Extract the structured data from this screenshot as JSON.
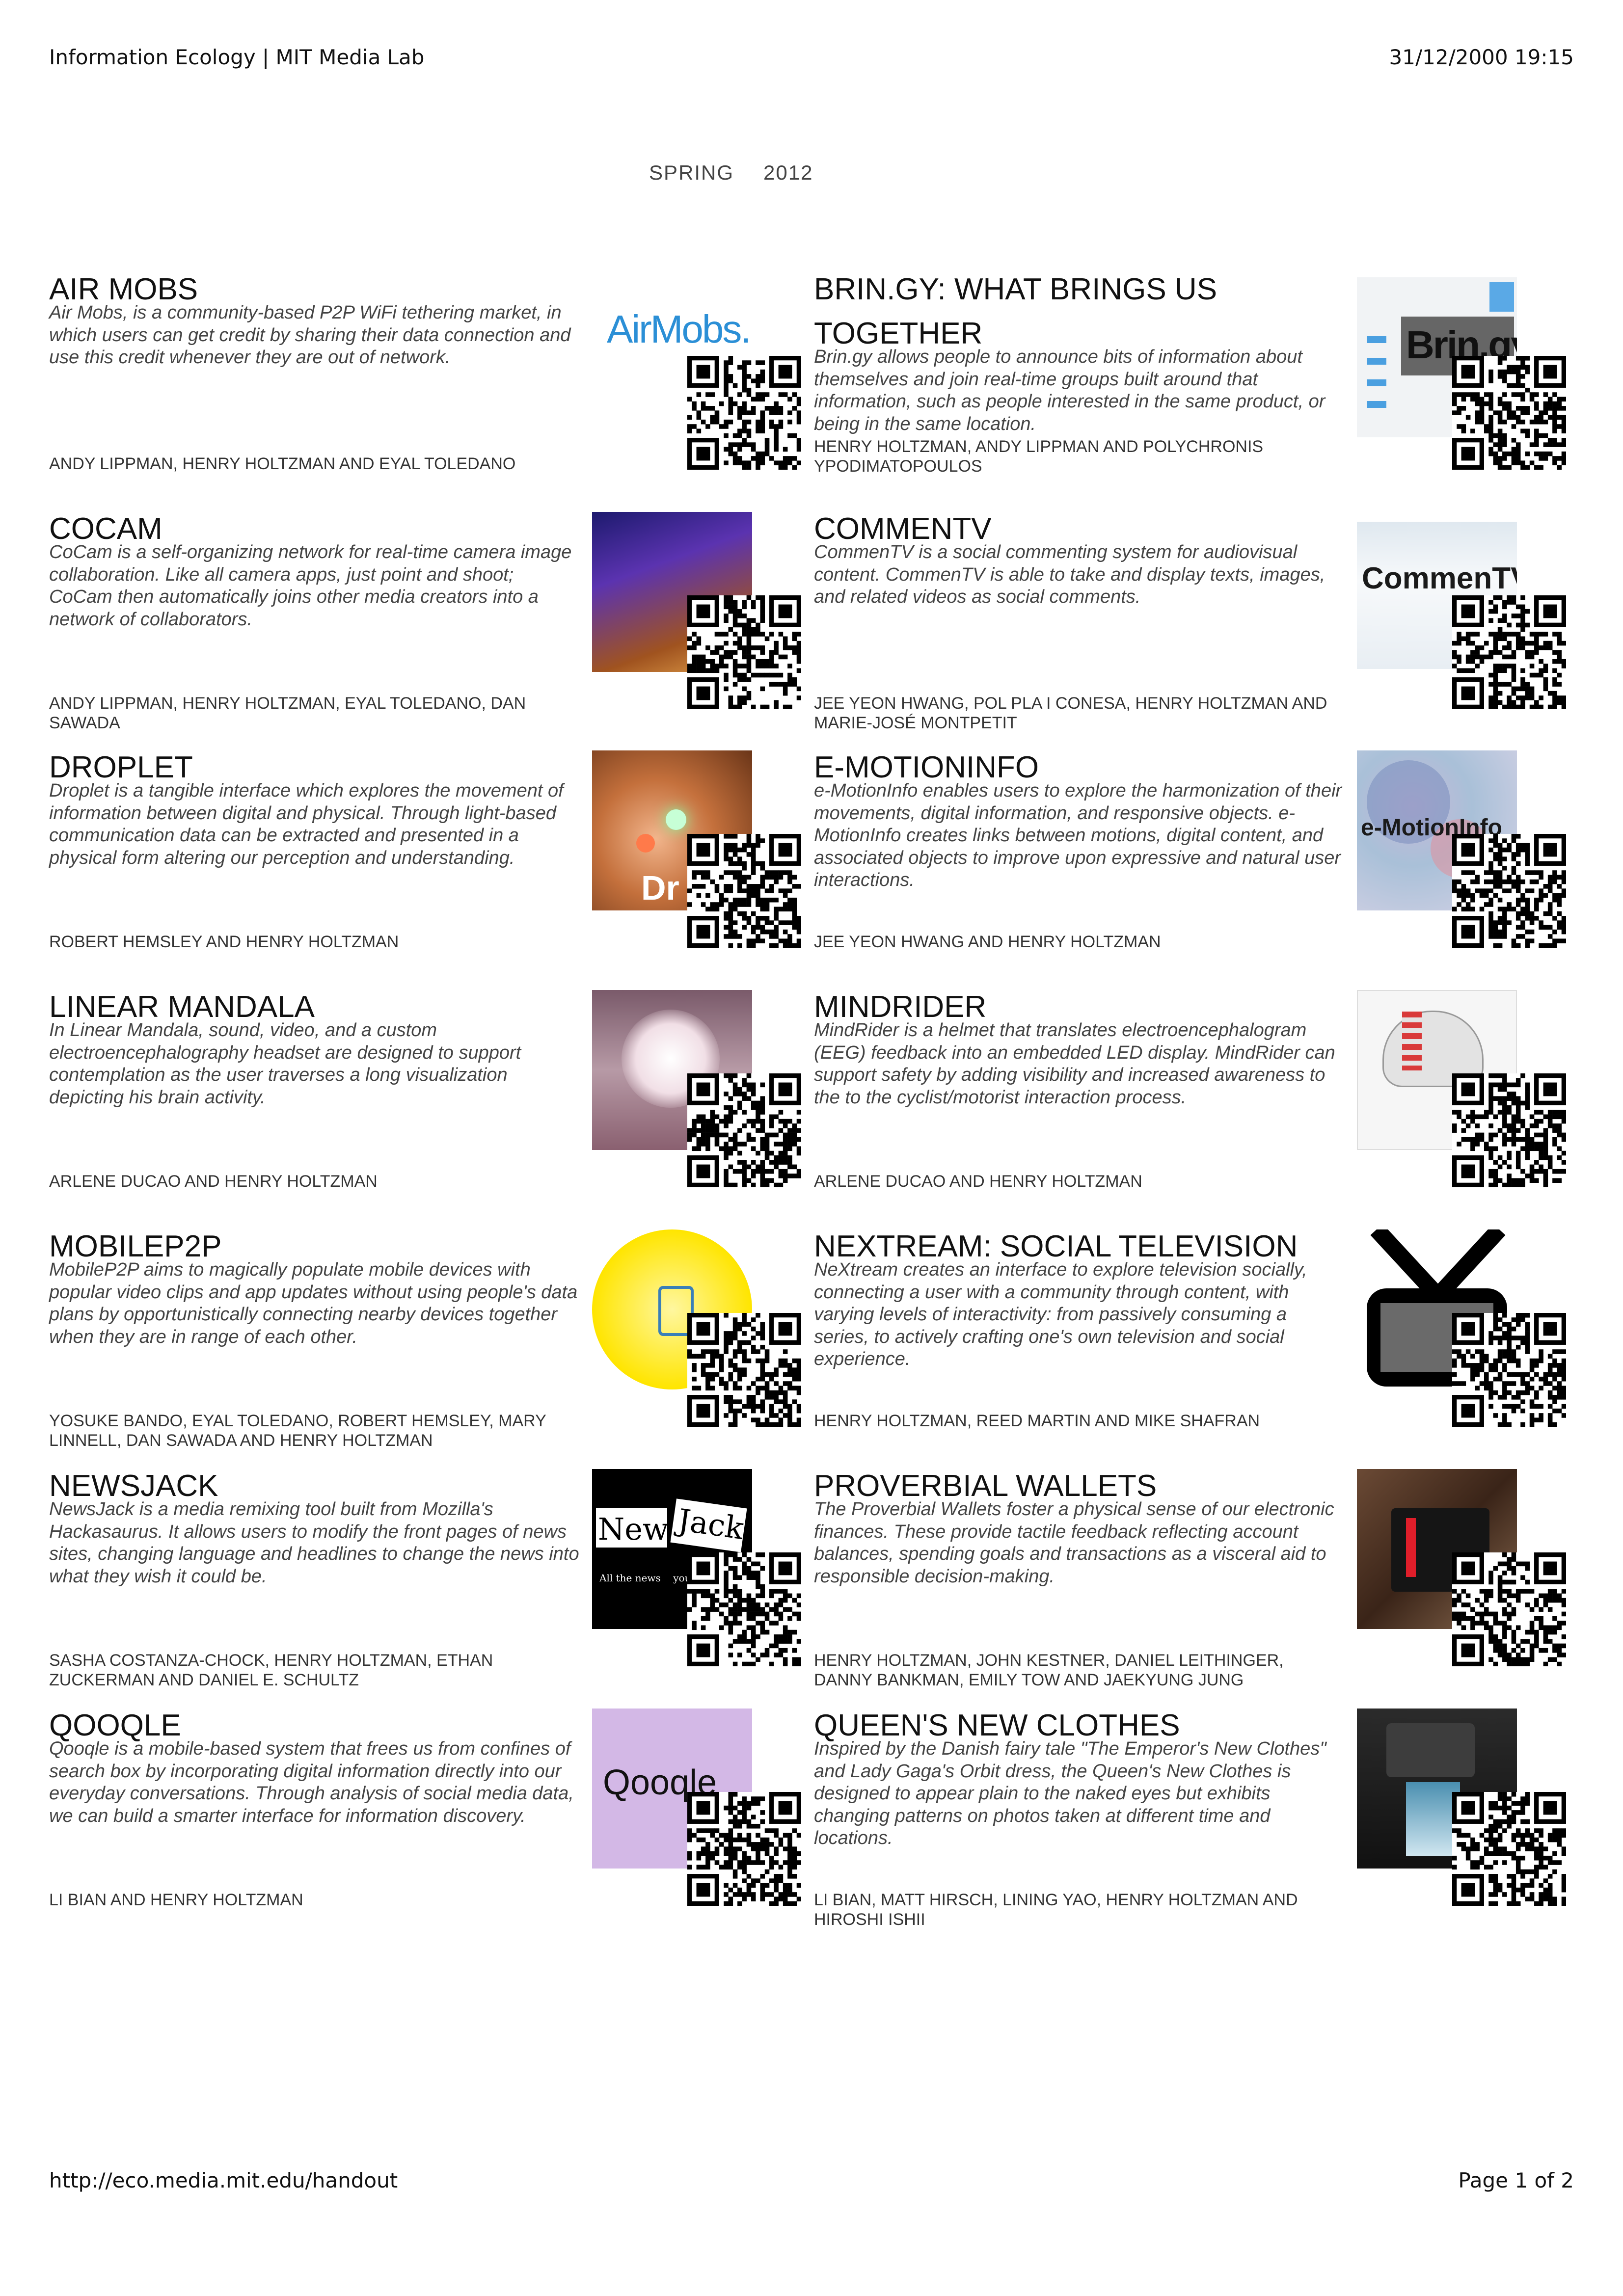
{
  "header": {
    "left": "Information Ecology | MIT Media Lab",
    "right": "31/12/2000 19:15"
  },
  "semester": {
    "season": "SPRING",
    "year": "2012"
  },
  "footer": {
    "left": "http://eco.media.mit.edu/handout",
    "right": "Page 1 of 2"
  },
  "projects": [
    {
      "title": "AIR MOBS",
      "desc": "Air Mobs, is a community-based P2P WiFi tethering market, in which users can get credit by sharing their data connection and use this credit whenever they are out of network.",
      "authors": "ANDY LIPPMAN, HENRY HOLTZMAN AND EYAL TOLEDANO",
      "logo": "AirMobs."
    },
    {
      "title": "BRIN.GY: WHAT BRINGS US TOGETHER",
      "desc": "Brin.gy allows people to announce bits of information about themselves and join real-time groups built around that information, such as people interested in the same product, or being in the same location.",
      "authors": "HENRY HOLTZMAN, ANDY LIPPMAN AND POLYCHRONIS YPODIMATOPOULOS",
      "logo": "Brin.gy"
    },
    {
      "title": "COCAM",
      "desc": "CoCam is a self-organizing network for real-time camera image collaboration. Like all camera apps, just point and shoot; CoCam then automatically joins other media creators into a network of collaborators.",
      "authors": "ANDY LIPPMAN, HENRY HOLTZMAN, EYAL TOLEDANO, DAN SAWADA"
    },
    {
      "title": "COMMENTV",
      "desc": "CommenTV is a social commenting system for audiovisual content. CommenTV is able to take and display texts, images, and related videos as social comments.",
      "authors": "JEE YEON HWANG, POL PLA I CONESA, HENRY HOLTZMAN AND MARIE-JOSÉ MONTPETIT",
      "logo": "CommenTV"
    },
    {
      "title": "DROPLET",
      "desc": "Droplet is a tangible interface which explores the movement of information between digital and physical. Through light-based communication data can be extracted and presented in a physical form altering our perception and understanding.",
      "authors": "ROBERT HEMSLEY AND HENRY HOLTZMAN",
      "logo": "Dr"
    },
    {
      "title": "E-MOTIONINFO",
      "desc": "e-MotionInfo enables users to explore the harmonization of their movements, digital information, and responsive objects. e-MotionInfo creates links between motions, digital content, and associated objects to improve upon expressive and natural user interactions.",
      "authors": "JEE YEON HWANG AND HENRY HOLTZMAN",
      "logo": "e-MotionInfo"
    },
    {
      "title": "LINEAR MANDALA",
      "desc": "In Linear Mandala, sound, video, and a custom electroencephalography headset are designed to support contemplation as the user traverses a long visualization depicting his brain activity.",
      "authors": "ARLENE DUCAO AND HENRY HOLTZMAN"
    },
    {
      "title": "MINDRIDER",
      "desc": "MindRider is a helmet that translates electroencephalogram (EEG) feedback into an embedded LED display. MindRider can support safety by adding visibility and increased awareness to the to the cyclist/motorist interaction process.",
      "authors": "ARLENE DUCAO AND HENRY HOLTZMAN"
    },
    {
      "title": "MOBILEP2P",
      "desc": "MobileP2P aims to magically populate mobile devices with popular video clips and app updates without using people's data plans by opportunistically connecting nearby devices together when they are in range of each other.",
      "authors": "YOSUKE BANDO, EYAL TOLEDANO, ROBERT HEMSLEY, MARY LINNELL, DAN SAWADA AND HENRY HOLTZMAN"
    },
    {
      "title": "NEXTREAM: SOCIAL TELEVISION",
      "desc": "NeXtream creates an interface to explore television socially, connecting a user with a community through content, with varying levels of interactivity: from passively consuming a series, to actively crafting one's own television and social experience.",
      "authors": "HENRY HOLTZMAN, REED MARTIN AND MIKE SHAFRAN"
    },
    {
      "title": "NEWSJACK",
      "desc": "NewsJack is a media remixing tool built from Mozilla's Hackasaurus. It allows users to modify the front pages of news sites, changing language and headlines to change the news into what they wish it could be.",
      "authors": "SASHA COSTANZA-CHOCK, HENRY HOLTZMAN, ETHAN ZUCKERMAN AND DANIEL E. SCHULTZ",
      "logo": "News",
      "logo2": "Jack",
      "logo3": "All the news    you'd"
    },
    {
      "title": "PROVERBIAL WALLETS",
      "desc": "The Proverbial Wallets foster a physical sense of our electronic finances. These provide tactile feedback reflecting account balances, spending goals and transactions as a visceral aid to responsible decision-making.",
      "authors": "HENRY HOLTZMAN, JOHN KESTNER, DANIEL LEITHINGER, DANNY BANKMAN, EMILY TOW AND JAEKYUNG JUNG"
    },
    {
      "title": "QOOQLE",
      "desc": "Qooqle is a mobile-based system that frees us from confines of search box by incorporating digital information directly into our everyday conversations. Through analysis of social media data, we can build a smarter interface for information discovery.",
      "authors": "LI BIAN AND HENRY HOLTZMAN",
      "logo": "Qooqle"
    },
    {
      "title": "QUEEN'S NEW CLOTHES",
      "desc": "Inspired by the Danish fairy tale \"The Emperor's New Clothes\" and Lady Gaga's Orbit dress, the Queen's New Clothes is designed to appear plain to the naked eyes but exhibits changing patterns on photos taken at different time and locations.",
      "authors": "LI BIAN, MATT HIRSCH, LINING YAO, HENRY HOLTZMAN AND HIROSHI ISHII"
    }
  ]
}
